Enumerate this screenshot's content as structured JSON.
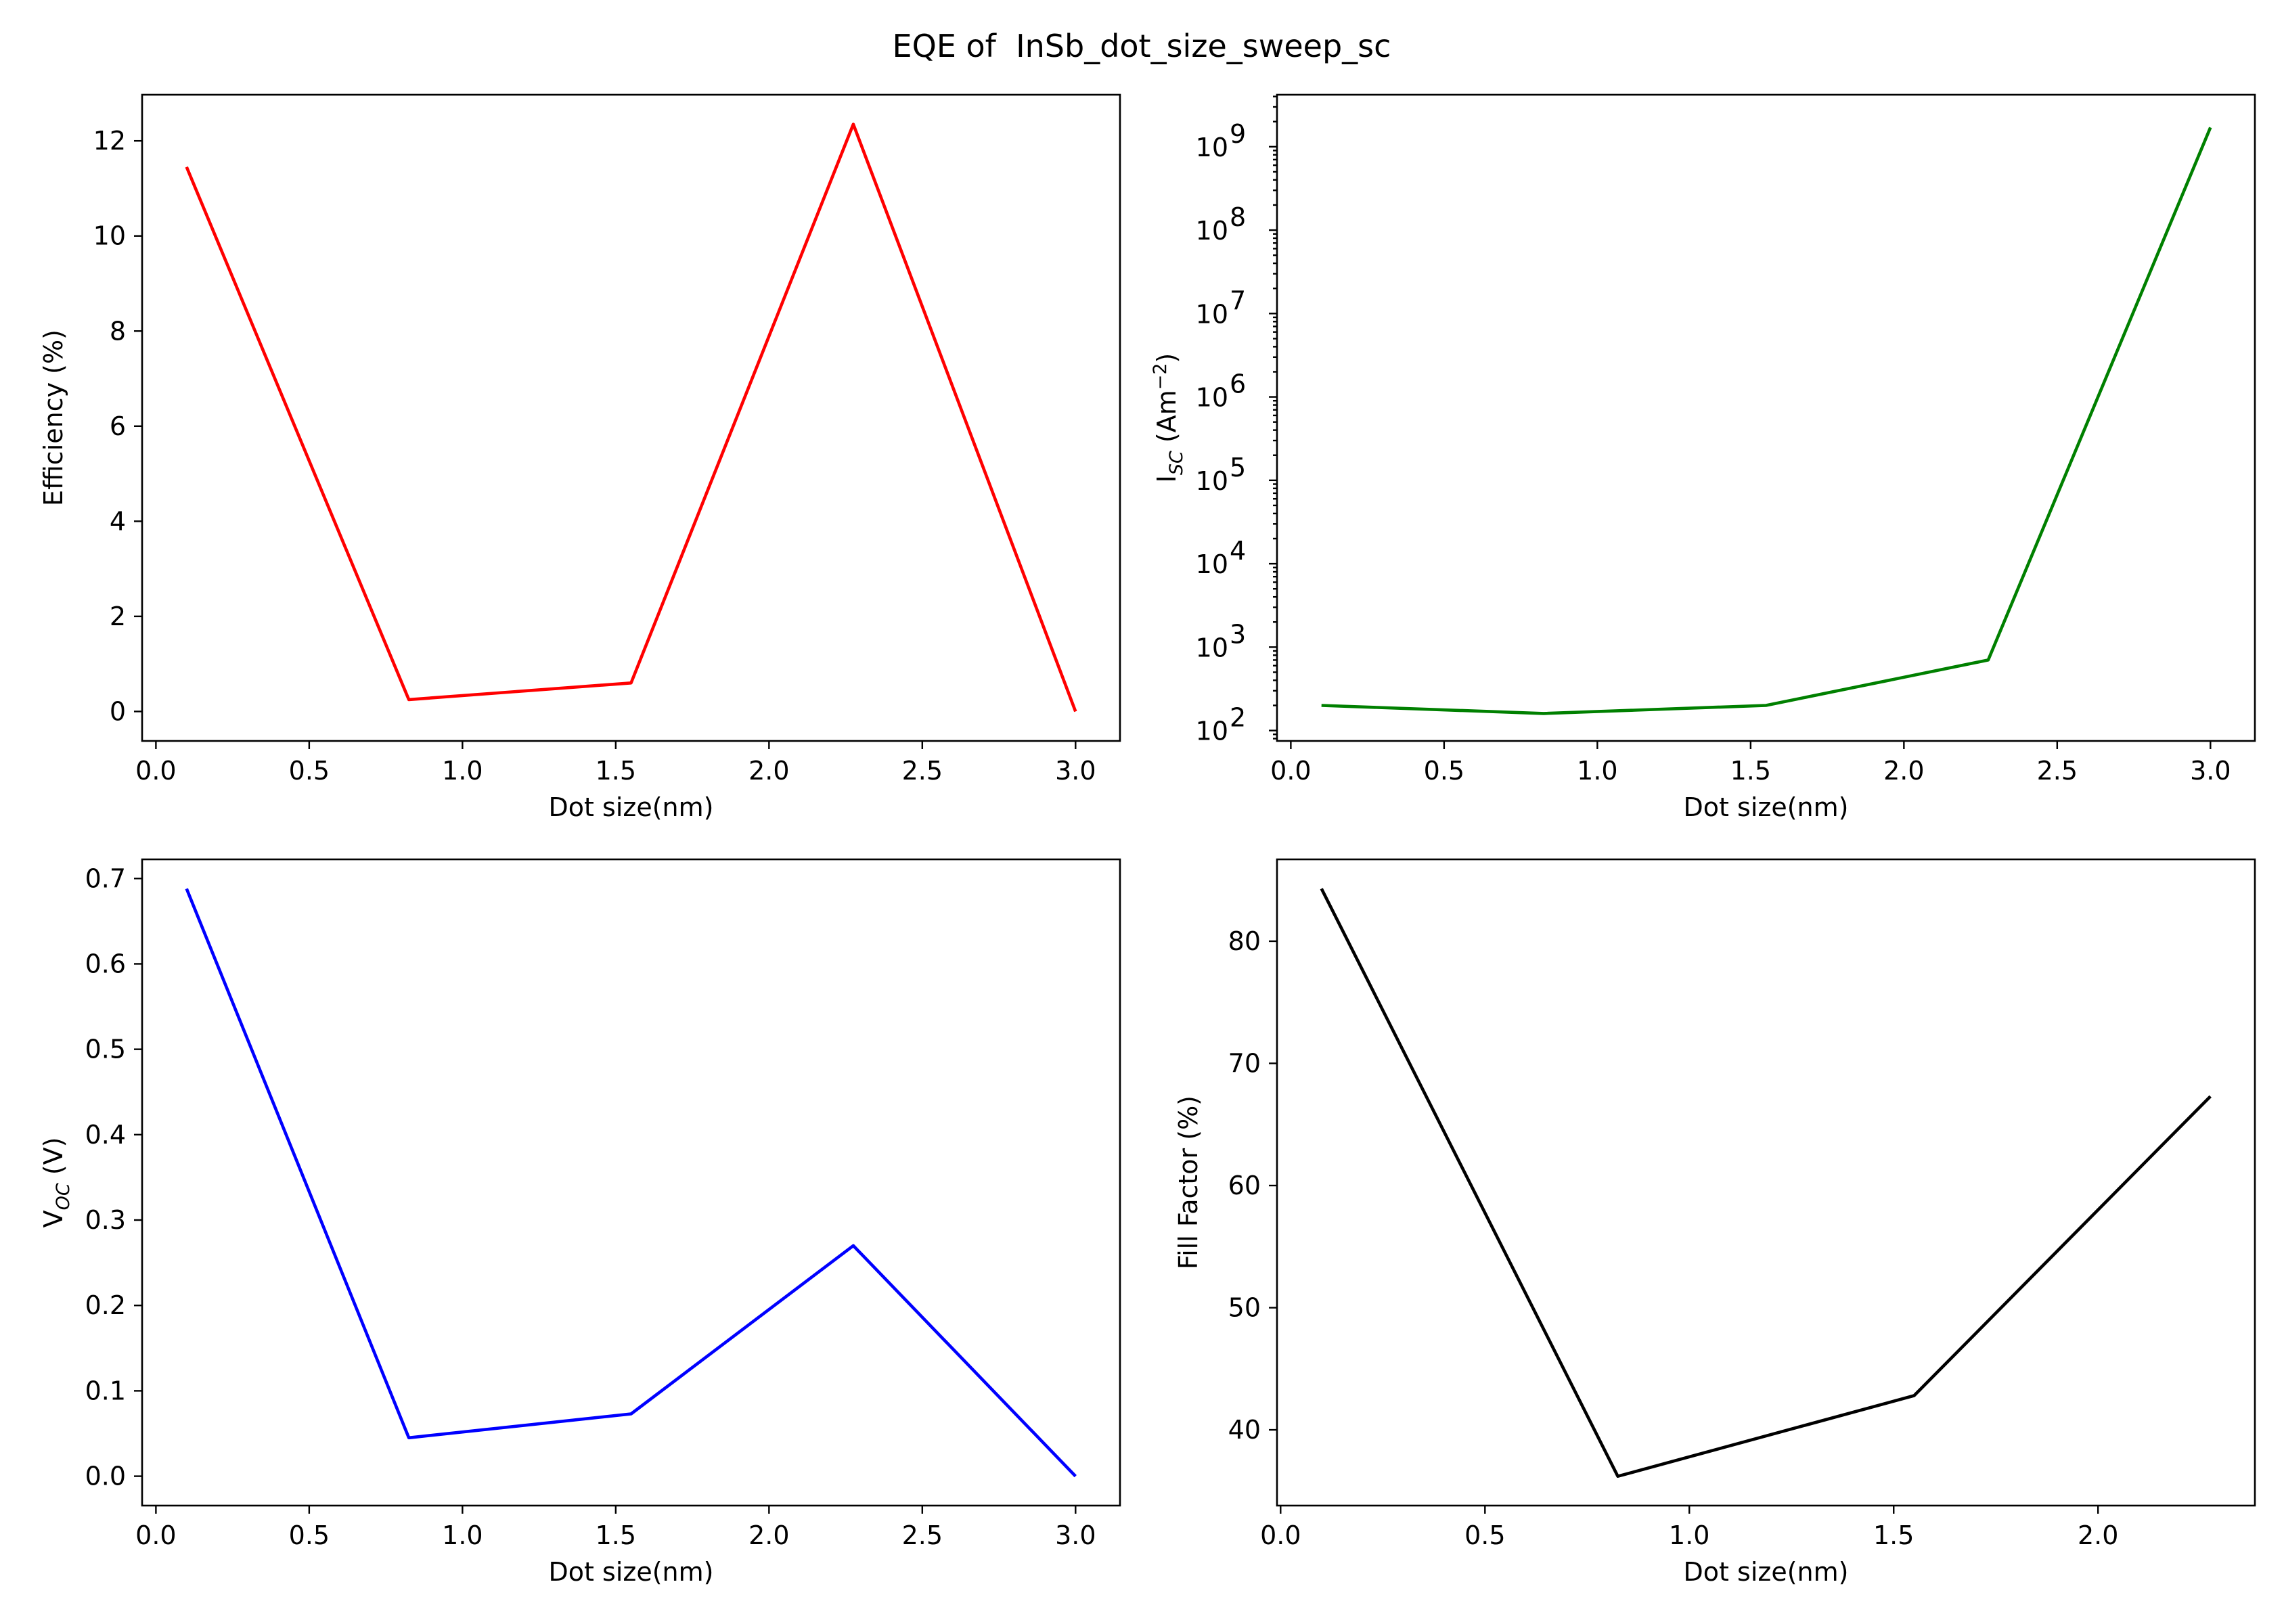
{
  "figure": {
    "title": "EQE of  InSb_dot_size_sweep_sc"
  },
  "chart_data": [
    {
      "id": "efficiency",
      "type": "line",
      "title": "",
      "xlabel": "Dot size(nm)",
      "ylabel": "Efficiency (%)",
      "color": "#ff0000",
      "x": [
        0.1,
        0.825,
        1.55,
        2.275,
        3.0
      ],
      "y": [
        11.45,
        0.25,
        0.6,
        12.35,
        0.0
      ],
      "xlim": [
        -0.045,
        3.145
      ],
      "ylim": [
        -0.62,
        12.97
      ],
      "xticks": [
        0.0,
        0.5,
        1.0,
        1.5,
        2.0,
        2.5,
        3.0
      ],
      "xtick_labels": [
        "0.0",
        "0.5",
        "1.0",
        "1.5",
        "2.0",
        "2.5",
        "3.0"
      ],
      "yticks": [
        0,
        2,
        4,
        6,
        8,
        10,
        12
      ],
      "ytick_labels": [
        "0",
        "2",
        "4",
        "6",
        "8",
        "10",
        "12"
      ],
      "yscale": "linear",
      "grid": false,
      "legend": "none"
    },
    {
      "id": "isc",
      "type": "line",
      "title": "",
      "xlabel": "Dot size(nm)",
      "ylabel": "I",
      "ylabel_sub": "SC",
      "ylabel_unit_pre": " (Am",
      "ylabel_unit_sup": "−2",
      "ylabel_unit_post": ")",
      "color": "#008000",
      "x": [
        0.1,
        0.825,
        1.55,
        2.275,
        3.0
      ],
      "y": [
        200,
        160,
        200,
        700,
        1700000000
      ],
      "xlim": [
        -0.045,
        3.145
      ],
      "ylim": [
        75,
        4200000000
      ],
      "xticks": [
        0.0,
        0.5,
        1.0,
        1.5,
        2.0,
        2.5,
        3.0
      ],
      "xtick_labels": [
        "0.0",
        "0.5",
        "1.0",
        "1.5",
        "2.0",
        "2.5",
        "3.0"
      ],
      "yticks": [
        100,
        1000,
        10000,
        100000,
        1000000,
        10000000,
        100000000,
        1000000000
      ],
      "ytick_base": "10",
      "ytick_exponents": [
        "2",
        "3",
        "4",
        "5",
        "6",
        "7",
        "8",
        "9"
      ],
      "yscale": "log",
      "grid": false,
      "legend": "none"
    },
    {
      "id": "voc",
      "type": "line",
      "title": "",
      "xlabel": "Dot size(nm)",
      "ylabel": "V",
      "ylabel_sub": "OC",
      "ylabel_unit_pre": " (V)",
      "color": "#0000ff",
      "x": [
        0.1,
        0.825,
        1.55,
        2.275,
        3.0
      ],
      "y": [
        0.688,
        0.045,
        0.073,
        0.27,
        0.0
      ],
      "xlim": [
        -0.045,
        3.145
      ],
      "ylim": [
        -0.0344,
        0.7224
      ],
      "xticks": [
        0.0,
        0.5,
        1.0,
        1.5,
        2.0,
        2.5,
        3.0
      ],
      "xtick_labels": [
        "0.0",
        "0.5",
        "1.0",
        "1.5",
        "2.0",
        "2.5",
        "3.0"
      ],
      "yticks": [
        0.0,
        0.1,
        0.2,
        0.3,
        0.4,
        0.5,
        0.6,
        0.7
      ],
      "ytick_labels": [
        "0.0",
        "0.1",
        "0.2",
        "0.3",
        "0.4",
        "0.5",
        "0.6",
        "0.7"
      ],
      "yscale": "linear",
      "grid": false,
      "legend": "none"
    },
    {
      "id": "fill-factor",
      "type": "line",
      "title": "",
      "xlabel": "Dot size(nm)",
      "ylabel": "Fill Factor (%)",
      "color": "#000000",
      "x": [
        0.1,
        0.825,
        1.55,
        2.275
      ],
      "y": [
        84.3,
        36.2,
        42.8,
        67.3
      ],
      "xlim": [
        -0.0088,
        2.3838
      ],
      "ylim": [
        33.8,
        86.7
      ],
      "xticks": [
        0.0,
        0.5,
        1.0,
        1.5,
        2.0
      ],
      "xtick_labels": [
        "0.0",
        "0.5",
        "1.0",
        "1.5",
        "2.0"
      ],
      "yticks": [
        40,
        50,
        60,
        70,
        80
      ],
      "ytick_labels": [
        "40",
        "50",
        "60",
        "70",
        "80"
      ],
      "yscale": "linear",
      "grid": false,
      "legend": "none"
    }
  ]
}
